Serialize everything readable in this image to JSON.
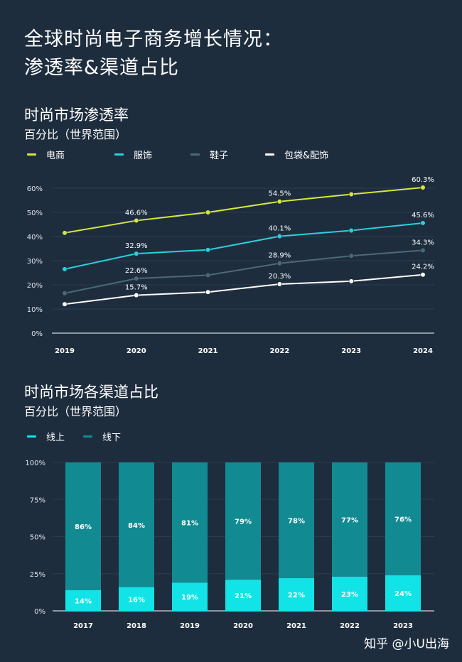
{
  "page": {
    "title_line1": "全球时尚电子商务增长情况：",
    "title_line2": "渗透率&渠道占比",
    "watermark": "知乎 @小U出海"
  },
  "colors": {
    "background": "#1e2d3e",
    "ecommerce": "#d4e83a",
    "apparel": "#2ad0dc",
    "shoes": "#4b6a78",
    "bags": "#ffffff",
    "online": "#12e3e6",
    "offline": "#128a92"
  },
  "chart_data": [
    {
      "type": "line",
      "title": "时尚市场渗透率",
      "subtitle": "百分比（世界范围）",
      "legend_placement": "top-left",
      "grid": true,
      "categories": [
        "2019",
        "2020",
        "2021",
        "2022",
        "2023",
        "2024"
      ],
      "yticks": [
        "0%",
        "10%",
        "20%",
        "30%",
        "40%",
        "50%",
        "60%"
      ],
      "ylim": [
        0,
        60
      ],
      "series": [
        {
          "name": "电商",
          "color_key": "ecommerce",
          "values": [
            41.5,
            46.6,
            50,
            54.5,
            57.5,
            60.3
          ],
          "labels": [
            null,
            "46.6%",
            null,
            "54.5%",
            null,
            "60.3%"
          ]
        },
        {
          "name": "服饰",
          "color_key": "apparel",
          "values": [
            26.5,
            32.9,
            34.5,
            40.1,
            42.5,
            45.6
          ],
          "labels": [
            null,
            "32.9%",
            null,
            "40.1%",
            null,
            "45.6%"
          ]
        },
        {
          "name": "鞋子",
          "color_key": "shoes",
          "values": [
            16.5,
            22.6,
            24,
            28.9,
            32,
            34.3
          ],
          "labels": [
            null,
            "22.6%",
            null,
            "28.9%",
            null,
            "34.3%"
          ]
        },
        {
          "name": "包袋&配饰",
          "color_key": "bags",
          "values": [
            12,
            15.7,
            17,
            20.3,
            21.5,
            24.2
          ],
          "labels": [
            null,
            "15.7%",
            null,
            "20.3%",
            null,
            "24.2%"
          ]
        }
      ]
    },
    {
      "type": "bar",
      "stacked": true,
      "title": "时尚市场各渠道占比",
      "subtitle": "百分比（世界范围）",
      "legend_placement": "top-left",
      "grid": true,
      "categories": [
        "2017",
        "2018",
        "2019",
        "2020",
        "2021",
        "2022",
        "2023"
      ],
      "yticks": [
        "0%",
        "25%",
        "50%",
        "75%",
        "100%"
      ],
      "ylim": [
        0,
        100
      ],
      "series": [
        {
          "name": "线上",
          "color_key": "online",
          "values": [
            14,
            16,
            19,
            21,
            22,
            23,
            24
          ]
        },
        {
          "name": "线下",
          "color_key": "offline",
          "values": [
            86,
            84,
            81,
            79,
            78,
            77,
            76
          ]
        }
      ]
    }
  ]
}
